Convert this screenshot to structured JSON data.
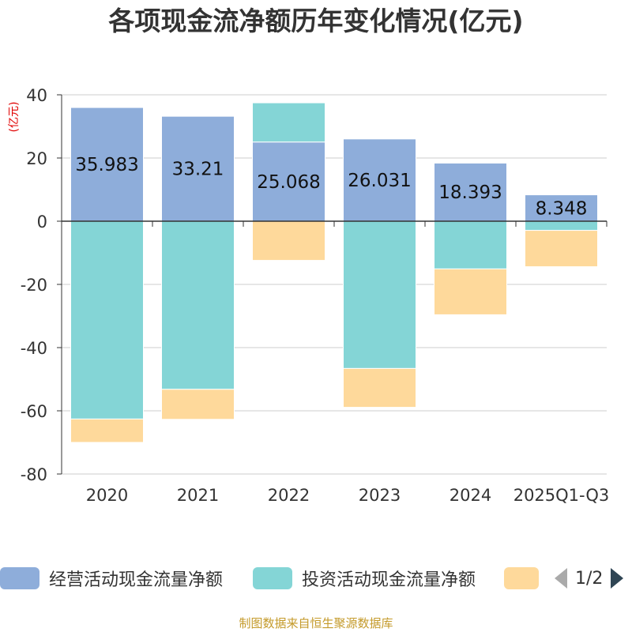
{
  "title": "各项现金流净额历年变化情况(亿元)",
  "source": "制图数据来自恒生聚源数据库",
  "chart_data": {
    "type": "bar",
    "stacked": true,
    "categories": [
      "2020",
      "2021",
      "2022",
      "2023",
      "2024",
      "2025Q1-Q3"
    ],
    "ylabel": "(亿元)",
    "ylim": [
      -80,
      40
    ],
    "yticks": [
      40,
      20,
      0,
      -20,
      -40,
      -60,
      -80
    ],
    "grid": true,
    "series": [
      {
        "name": "经营活动现金流量净额",
        "color": "#8eadda",
        "values": [
          35.983,
          33.21,
          25.068,
          26.031,
          18.393,
          8.348
        ],
        "labels": [
          "35.983",
          "33.21",
          "25.068",
          "26.031",
          "18.393",
          "8.348"
        ]
      },
      {
        "name": "投资活动现金流量净额",
        "color": "#84d5d6",
        "values": [
          -62.6,
          -53.2,
          12.4,
          -46.6,
          -15.1,
          -2.9
        ]
      },
      {
        "name": "",
        "color": "#fed99b",
        "values": [
          -7.4,
          -9.5,
          -12.4,
          -12.3,
          -14.5,
          -11.5
        ]
      }
    ]
  },
  "legend": {
    "items": [
      {
        "label": "经营活动现金流量净额",
        "color": "#8eadda"
      },
      {
        "label": "投资活动现金流量净额",
        "color": "#84d5d6"
      },
      {
        "label": "",
        "color": "#fed99b"
      }
    ],
    "page": "1/2"
  }
}
